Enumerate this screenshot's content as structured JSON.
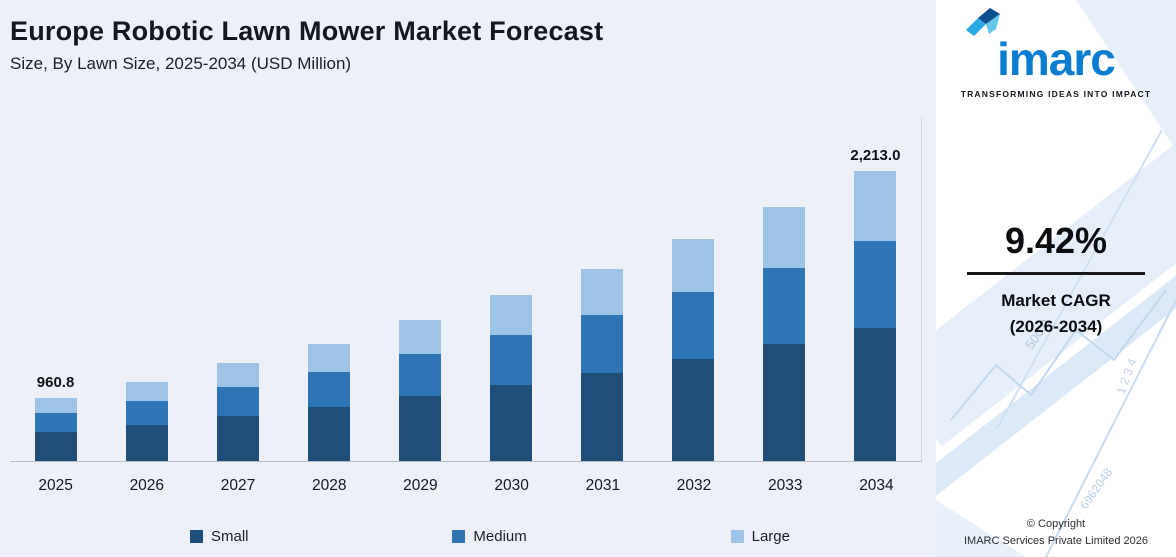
{
  "header": {
    "title": "Europe Robotic Lawn Mower Market Forecast",
    "subtitle": "Size, By Lawn Size, 2025-2034 (USD Million)"
  },
  "chart_data": {
    "type": "bar",
    "stacked": true,
    "title": "Europe Robotic Lawn Mower Market Forecast",
    "unit": "USD Million",
    "categories": [
      "2025",
      "2026",
      "2027",
      "2028",
      "2029",
      "2030",
      "2031",
      "2032",
      "2033",
      "2034"
    ],
    "series": [
      {
        "name": "Small",
        "color": "#1F4E79",
        "values": [
          442.0,
          484.8,
          531.8,
          583.7,
          640.3,
          702.4,
          770.5,
          845.5,
          927.8,
          1018.0
        ]
      },
      {
        "name": "Medium",
        "color": "#2E75B6",
        "values": [
          288.2,
          316.2,
          346.8,
          380.7,
          417.6,
          458.1,
          502.5,
          551.4,
          605.1,
          663.9
        ]
      },
      {
        "name": "Large",
        "color": "#9DC3E6",
        "values": [
          230.6,
          253.0,
          277.4,
          304.6,
          334.1,
          366.5,
          402.0,
          441.1,
          484.1,
          531.1
        ]
      }
    ],
    "totals": [
      960.8,
      1054.0,
      1156.0,
      1269.0,
      1392.0,
      1527.0,
      1675.0,
      1838.0,
      2017.0,
      2213.0
    ],
    "bar_labels": [
      "960.8",
      "",
      "",
      "",
      "",
      "",
      "",
      "",
      "",
      "2,213.0"
    ],
    "legend_position": "bottom",
    "gridlines": false,
    "y_axis_labels_shown": false
  },
  "sidebar": {
    "logo_text": "imarc",
    "tagline": "TRANSFORMING IDEAS INTO IMPACT",
    "cagr_value": "9.42%",
    "cagr_label_line1": "Market CAGR",
    "cagr_label_line2": "(2026-2034)",
    "copyright_line1": "© Copyright",
    "copyright_line2": "IMARC Services Private Limited 2026",
    "watermarks": [
      "500.0",
      "1 2 3 4",
      "6962048"
    ]
  },
  "colors": {
    "small": "#1F4E79",
    "medium": "#2E75B6",
    "large": "#9DC3E6",
    "brand_blue": "#0A7DD1",
    "background": "#EDF1F7"
  }
}
